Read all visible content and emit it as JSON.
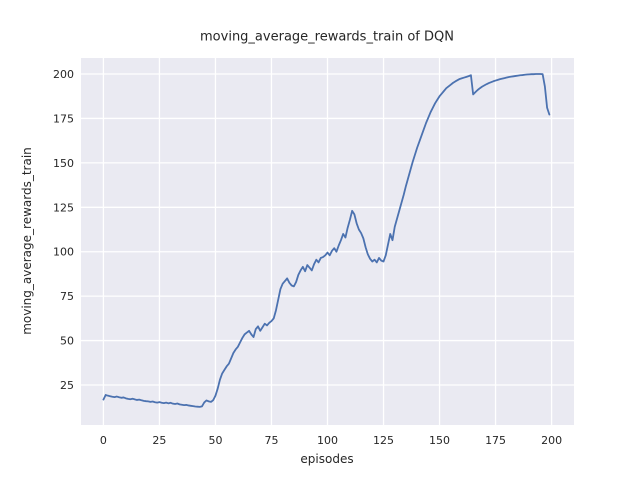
{
  "figure": {
    "title": "moving_average_rewards_train of DQN",
    "xlabel": "episodes",
    "ylabel": "moving_average_rewards_train"
  },
  "chart_data": {
    "type": "line",
    "title": "moving_average_rewards_train of DQN",
    "xlabel": "episodes",
    "ylabel": "moving_average_rewards_train",
    "x0": 0,
    "dx": 1,
    "values": [
      16.8,
      19.4,
      19.0,
      18.7,
      18.4,
      18.2,
      18.5,
      18.1,
      17.8,
      18.0,
      17.5,
      17.2,
      17.0,
      17.3,
      16.9,
      16.6,
      16.8,
      16.4,
      16.1,
      15.9,
      15.8,
      15.5,
      15.7,
      15.3,
      15.1,
      15.4,
      15.0,
      14.8,
      15.1,
      14.7,
      15.0,
      14.5,
      14.3,
      14.6,
      14.1,
      13.9,
      13.7,
      13.8,
      13.5,
      13.3,
      13.1,
      12.9,
      12.8,
      12.7,
      13.0,
      15.2,
      16.3,
      15.8,
      15.5,
      16.5,
      19.0,
      23.0,
      28.0,
      31.5,
      33.5,
      35.5,
      37.0,
      40.0,
      43.0,
      45.0,
      46.5,
      49.0,
      51.5,
      53.5,
      54.5,
      55.5,
      53.5,
      52.0,
      56.5,
      58.0,
      55.5,
      57.5,
      59.5,
      58.5,
      60.0,
      61.0,
      62.5,
      67.0,
      73.0,
      79.0,
      82.0,
      83.5,
      85.0,
      82.5,
      81.0,
      80.5,
      83.0,
      87.0,
      89.5,
      91.5,
      89.0,
      92.5,
      91.0,
      89.5,
      93.0,
      95.5,
      94.0,
      96.5,
      97.0,
      98.0,
      99.5,
      98.0,
      100.5,
      102.0,
      100.0,
      103.5,
      106.5,
      110.0,
      108.0,
      113.5,
      118.0,
      123.0,
      121.0,
      116.0,
      112.5,
      110.5,
      107.5,
      102.5,
      98.5,
      96.0,
      94.5,
      95.5,
      94.0,
      96.5,
      95.0,
      94.5,
      98.0,
      104.0,
      110.0,
      106.5,
      114.0,
      118.5,
      123.0,
      127.5,
      132.0,
      137.0,
      141.5,
      146.0,
      150.5,
      154.5,
      158.5,
      162.0,
      165.5,
      169.0,
      172.5,
      175.5,
      178.5,
      181.0,
      183.5,
      185.5,
      187.5,
      189.0,
      190.5,
      192.0,
      193.0,
      194.0,
      195.0,
      195.8,
      196.5,
      197.2,
      197.6,
      198.0,
      198.4,
      198.8,
      199.3,
      188.5,
      189.8,
      191.0,
      192.0,
      192.9,
      193.6,
      194.3,
      194.9,
      195.4,
      195.9,
      196.3,
      196.7,
      197.1,
      197.4,
      197.7,
      198.0,
      198.3,
      198.5,
      198.7,
      198.9,
      199.1,
      199.3,
      199.4,
      199.6,
      199.7,
      199.8,
      199.9,
      199.9,
      200.0,
      200.0,
      200.0,
      199.9,
      193.0,
      181.0,
      177.2
    ],
    "xticks": [
      0,
      25,
      50,
      75,
      100,
      125,
      150,
      175,
      200
    ],
    "yticks": [
      25,
      50,
      75,
      100,
      125,
      150,
      175,
      200
    ],
    "xlim": [
      -10,
      210
    ],
    "ylim": [
      2.5,
      209
    ],
    "grid": true,
    "legend_position": "none",
    "line_color": "#4c72b0",
    "plot_bg_color": "#eaeaf2",
    "grid_color": "#ffffff",
    "text_color": "#262626"
  }
}
